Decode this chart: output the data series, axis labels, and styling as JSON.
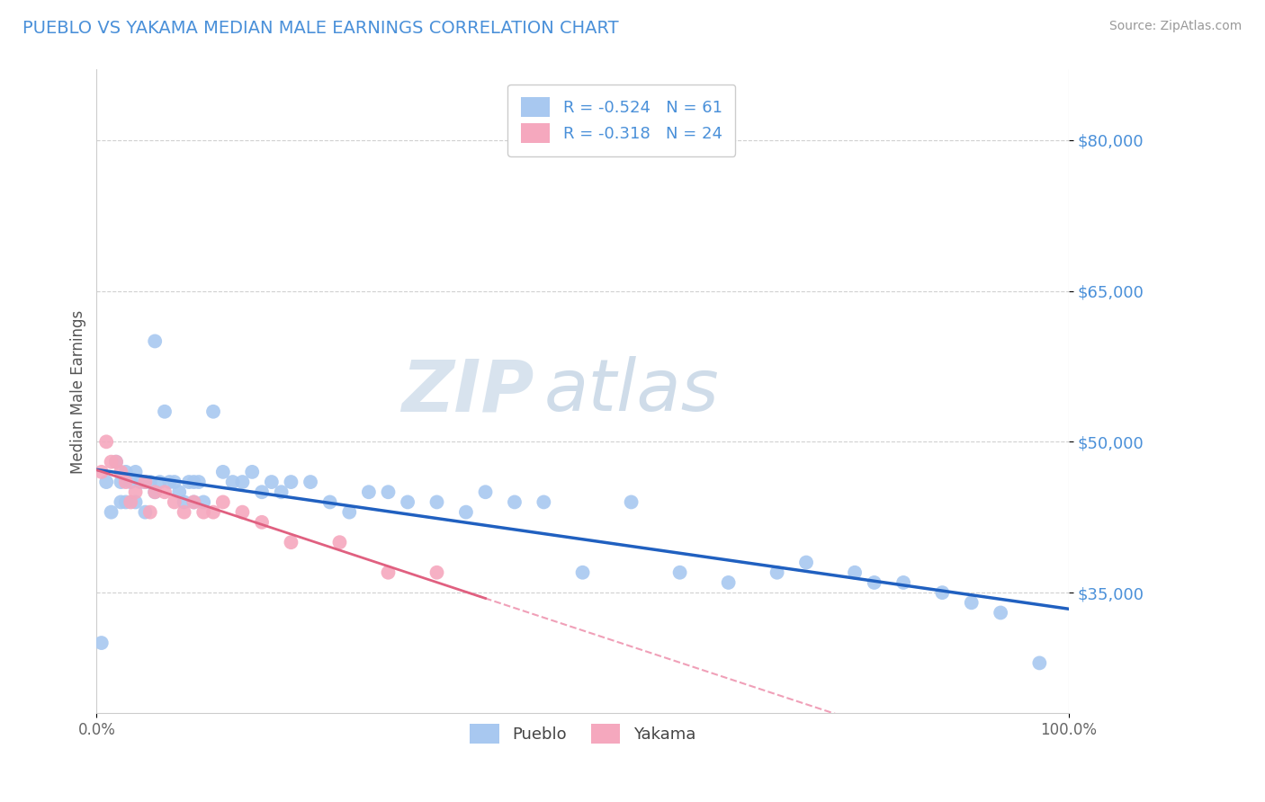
{
  "title": "PUEBLO VS YAKAMA MEDIAN MALE EARNINGS CORRELATION CHART",
  "source": "Source: ZipAtlas.com",
  "ylabel": "Median Male Earnings",
  "yticks": [
    35000,
    50000,
    65000,
    80000
  ],
  "ytick_labels": [
    "$35,000",
    "$50,000",
    "$65,000",
    "$80,000"
  ],
  "xlim": [
    0.0,
    1.0
  ],
  "ylim": [
    23000,
    87000
  ],
  "pueblo_color": "#a8c8f0",
  "yakama_color": "#f5a8be",
  "pueblo_line_color": "#2060c0",
  "yakama_line_color": "#e06080",
  "yakama_line_dash_color": "#f0a0b8",
  "text_color_blue": "#4a90d9",
  "R_pueblo": -0.524,
  "N_pueblo": 61,
  "R_yakama": -0.318,
  "N_yakama": 24,
  "watermark_zip": "ZIP",
  "watermark_atlas": "atlas",
  "pueblo_x": [
    0.005,
    0.01,
    0.015,
    0.02,
    0.025,
    0.025,
    0.03,
    0.03,
    0.035,
    0.04,
    0.04,
    0.045,
    0.05,
    0.05,
    0.055,
    0.06,
    0.06,
    0.065,
    0.07,
    0.075,
    0.08,
    0.085,
    0.09,
    0.095,
    0.1,
    0.1,
    0.105,
    0.11,
    0.12,
    0.13,
    0.14,
    0.15,
    0.16,
    0.17,
    0.18,
    0.19,
    0.2,
    0.22,
    0.24,
    0.26,
    0.28,
    0.3,
    0.32,
    0.35,
    0.38,
    0.4,
    0.43,
    0.46,
    0.5,
    0.55,
    0.6,
    0.65,
    0.7,
    0.73,
    0.78,
    0.8,
    0.83,
    0.87,
    0.9,
    0.93,
    0.97
  ],
  "pueblo_y": [
    30000,
    46000,
    43000,
    48000,
    46000,
    44000,
    47000,
    44000,
    46000,
    47000,
    44000,
    46000,
    46000,
    43000,
    46000,
    60000,
    45000,
    46000,
    53000,
    46000,
    46000,
    45000,
    44000,
    46000,
    46000,
    44000,
    46000,
    44000,
    53000,
    47000,
    46000,
    46000,
    47000,
    45000,
    46000,
    45000,
    46000,
    46000,
    44000,
    43000,
    45000,
    45000,
    44000,
    44000,
    43000,
    45000,
    44000,
    44000,
    37000,
    44000,
    37000,
    36000,
    37000,
    38000,
    37000,
    36000,
    36000,
    35000,
    34000,
    33000,
    28000
  ],
  "yakama_x": [
    0.005,
    0.01,
    0.015,
    0.02,
    0.025,
    0.03,
    0.035,
    0.04,
    0.05,
    0.055,
    0.06,
    0.07,
    0.08,
    0.09,
    0.1,
    0.11,
    0.12,
    0.13,
    0.15,
    0.17,
    0.2,
    0.25,
    0.3,
    0.35
  ],
  "yakama_y": [
    47000,
    50000,
    48000,
    48000,
    47000,
    46000,
    44000,
    45000,
    46000,
    43000,
    45000,
    45000,
    44000,
    43000,
    44000,
    43000,
    43000,
    44000,
    43000,
    42000,
    40000,
    40000,
    37000,
    37000
  ],
  "grid_color": "#d0d0d0",
  "spine_color": "#cccccc"
}
